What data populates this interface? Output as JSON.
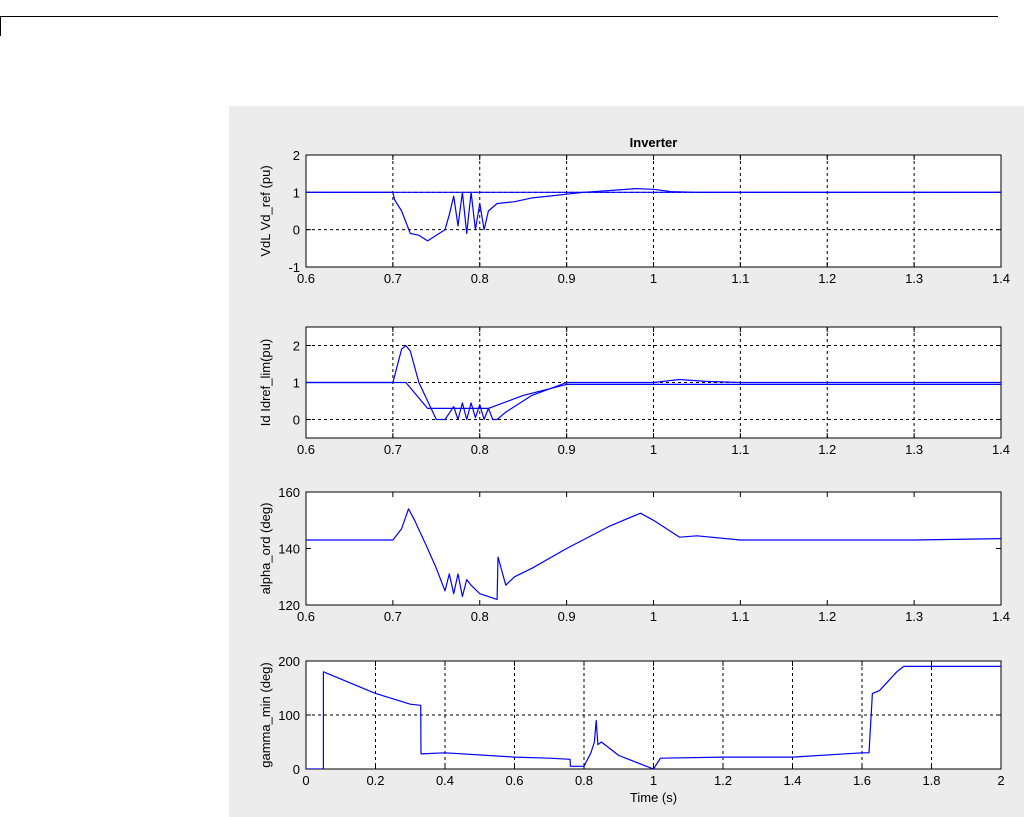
{
  "colors": {
    "figure_bg": "#ececec",
    "series": "#0000ff",
    "axes": "#000000"
  },
  "chart_data": [
    {
      "type": "line",
      "title": "Inverter",
      "xlabel": "",
      "ylabel": "VdL  Vd_ref (pu)",
      "xlim": [
        0.6,
        1.4
      ],
      "ylim": [
        -1,
        2
      ],
      "xticks": [
        "0.6",
        "0.7",
        "0.8",
        "0.9",
        "1",
        "1.1",
        "1.2",
        "1.3",
        "1.4"
      ],
      "yticks": [
        "-1",
        "0",
        "1",
        "2"
      ],
      "grid": true,
      "series": [
        {
          "x": [
            0.6,
            1.4
          ],
          "y": [
            1,
            1
          ]
        },
        {
          "x": [
            0.6,
            0.7,
            0.702,
            0.71,
            0.72,
            0.73,
            0.74,
            0.75,
            0.76,
            0.765,
            0.77,
            0.775,
            0.78,
            0.785,
            0.79,
            0.795,
            0.8,
            0.805,
            0.81,
            0.82,
            0.84,
            0.86,
            0.88,
            0.9,
            0.92,
            0.95,
            0.98,
            1.0,
            1.02,
            1.05,
            1.1,
            1.2,
            1.3,
            1.4
          ],
          "y": [
            1,
            1,
            0.8,
            0.5,
            -0.1,
            -0.15,
            -0.3,
            -0.15,
            0.0,
            0.4,
            0.9,
            0.1,
            1.0,
            -0.1,
            1.0,
            0.0,
            0.7,
            0.0,
            0.5,
            0.7,
            0.75,
            0.85,
            0.9,
            0.95,
            1.0,
            1.05,
            1.1,
            1.08,
            1.02,
            1.0,
            1.0,
            1.0,
            1.0,
            1.0
          ]
        }
      ]
    },
    {
      "type": "line",
      "title": "",
      "xlabel": "",
      "ylabel": "Id  Idref_lim(pu)",
      "xlim": [
        0.6,
        1.4
      ],
      "ylim": [
        -0.5,
        2.5
      ],
      "xticks": [
        "0.6",
        "0.7",
        "0.8",
        "0.9",
        "1",
        "1.1",
        "1.2",
        "1.3",
        "1.4"
      ],
      "yticks": [
        "0",
        "1",
        "2"
      ],
      "grid": true,
      "series": [
        {
          "x": [
            0.6,
            0.7,
            0.715,
            0.74,
            0.81,
            0.85,
            0.9,
            1.4
          ],
          "y": [
            1,
            1,
            1.0,
            0.3,
            0.3,
            0.65,
            0.95,
            0.95
          ]
        },
        {
          "x": [
            0.6,
            0.7,
            0.71,
            0.715,
            0.72,
            0.73,
            0.74,
            0.75,
            0.76,
            0.77,
            0.775,
            0.78,
            0.785,
            0.79,
            0.795,
            0.8,
            0.805,
            0.81,
            0.815,
            0.82,
            0.83,
            0.86,
            0.9,
            0.95,
            1.0,
            1.03,
            1.06,
            1.1,
            1.4
          ],
          "y": [
            1,
            1,
            1.9,
            2.0,
            1.85,
            1.0,
            0.5,
            0.0,
            0.0,
            0.35,
            0.0,
            0.45,
            0.0,
            0.45,
            0.05,
            0.4,
            0.0,
            0.3,
            0.0,
            0.0,
            0.2,
            0.65,
            1.0,
            1.0,
            1.0,
            1.08,
            1.03,
            1.0,
            1.0
          ]
        }
      ]
    },
    {
      "type": "line",
      "title": "",
      "xlabel": "",
      "ylabel": "alpha_ord (deg)",
      "xlim": [
        0.6,
        1.4
      ],
      "ylim": [
        120,
        160
      ],
      "xticks": [
        "0.6",
        "0.7",
        "0.8",
        "0.9",
        "1",
        "1.1",
        "1.2",
        "1.3",
        "1.4"
      ],
      "yticks": [
        "120",
        "140",
        "160"
      ],
      "grid": false,
      "series": [
        {
          "x": [
            0.6,
            0.7,
            0.71,
            0.718,
            0.725,
            0.74,
            0.75,
            0.76,
            0.765,
            0.77,
            0.775,
            0.78,
            0.785,
            0.79,
            0.8,
            0.82,
            0.821,
            0.83,
            0.84,
            0.86,
            0.9,
            0.95,
            0.985,
            1.0,
            1.03,
            1.05,
            1.1,
            1.2,
            1.3,
            1.4
          ],
          "y": [
            143,
            143,
            147,
            154,
            150,
            140,
            133,
            125,
            131,
            124,
            131,
            123,
            129,
            127,
            124,
            122,
            137,
            127,
            130,
            133,
            140,
            148,
            152.5,
            150,
            144,
            144.5,
            143,
            143,
            143,
            143.5
          ]
        }
      ]
    },
    {
      "type": "line",
      "title": "",
      "xlabel": "Time (s)",
      "ylabel": "gamma_min (deg)",
      "xlim": [
        0,
        2
      ],
      "ylim": [
        0,
        200
      ],
      "xticks": [
        "0",
        "0.2",
        "0.4",
        "0.6",
        "0.8",
        "1",
        "1.2",
        "1.4",
        "1.6",
        "1.8",
        "2"
      ],
      "yticks": [
        "0",
        "100",
        "200"
      ],
      "grid": true,
      "series": [
        {
          "x": [
            0,
            0.05,
            0.05,
            0.2,
            0.3,
            0.33,
            0.331,
            0.4,
            0.6,
            0.7,
            0.76,
            0.761,
            0.8,
            0.82,
            0.83,
            0.835,
            0.84,
            0.85,
            0.9,
            1.0,
            1.02,
            1.2,
            1.4,
            1.6,
            1.62,
            1.63,
            1.65,
            1.7,
            1.72,
            2.0
          ],
          "y": [
            0,
            0,
            180,
            140,
            120,
            118,
            28,
            30,
            22,
            20,
            18,
            5,
            5,
            30,
            50,
            90,
            45,
            50,
            25,
            0,
            20,
            22,
            22,
            30,
            30,
            140,
            145,
            180,
            190,
            190
          ]
        }
      ]
    }
  ]
}
